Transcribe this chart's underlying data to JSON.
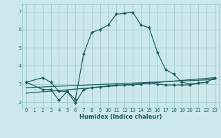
{
  "title": "",
  "xlabel": "Humidex (Indice chaleur)",
  "bg_color": "#cce8ec",
  "grid_color": "#99ccd4",
  "line_color": "#1a6060",
  "xlim": [
    -0.5,
    23.5
  ],
  "ylim": [
    1.7,
    7.4
  ],
  "yticks": [
    2,
    3,
    4,
    5,
    6,
    7
  ],
  "xticks": [
    0,
    1,
    2,
    3,
    4,
    5,
    6,
    7,
    8,
    9,
    10,
    11,
    12,
    13,
    14,
    15,
    16,
    17,
    18,
    19,
    20,
    21,
    22,
    23
  ],
  "curve1_x": [
    0,
    2,
    3,
    4,
    5,
    6,
    7,
    8,
    9,
    10,
    11,
    12,
    13,
    14,
    15,
    16,
    17,
    18,
    19,
    20,
    21,
    22,
    23
  ],
  "curve1_y": [
    3.1,
    3.35,
    3.1,
    2.6,
    2.6,
    2.15,
    4.65,
    5.85,
    6.0,
    6.25,
    6.85,
    6.9,
    6.95,
    6.25,
    6.1,
    4.75,
    3.8,
    3.55,
    3.1,
    3.0,
    3.05,
    3.1,
    3.35
  ],
  "curve2_x": [
    0,
    2,
    3,
    4,
    5,
    6,
    7,
    8,
    9,
    10,
    11,
    12,
    13,
    14,
    15,
    16,
    17,
    18,
    19,
    20,
    21,
    22,
    23
  ],
  "curve2_y": [
    3.1,
    2.7,
    2.7,
    2.1,
    2.6,
    1.95,
    2.7,
    2.8,
    2.85,
    2.9,
    2.95,
    2.95,
    2.95,
    3.0,
    3.05,
    3.0,
    2.95,
    2.95,
    2.95,
    2.95,
    3.05,
    3.1,
    3.35
  ],
  "curve3_x": [
    0,
    23
  ],
  "curve3_y": [
    2.5,
    3.35
  ],
  "curve4_x": [
    0,
    23
  ],
  "curve4_y": [
    2.8,
    3.25
  ]
}
